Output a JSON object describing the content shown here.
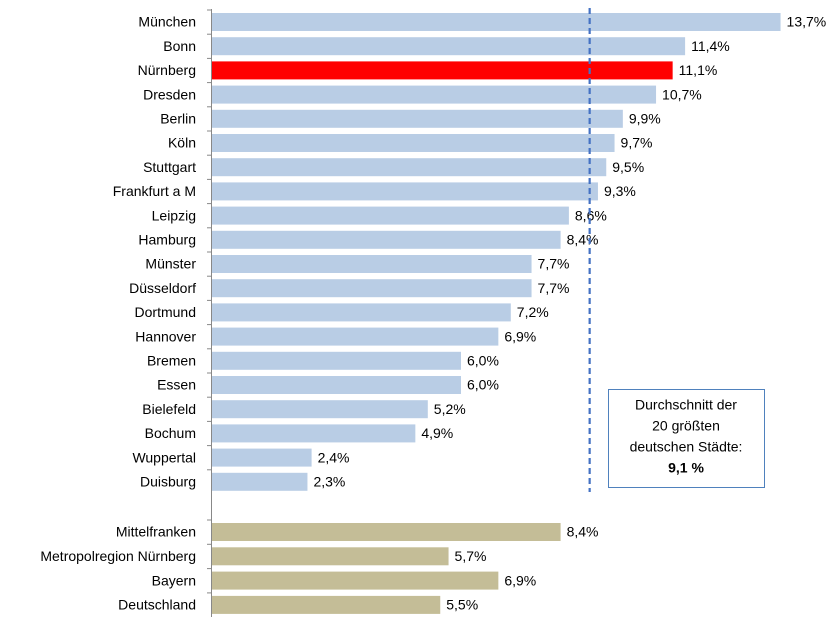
{
  "chart_data": {
    "type": "bar",
    "orientation": "horizontal",
    "categories": [
      "München",
      "Bonn",
      "Nürnberg",
      "Dresden",
      "Berlin",
      "Köln",
      "Stuttgart",
      "Frankfurt a M",
      "Leipzig",
      "Hamburg",
      "Münster",
      "Düsseldorf",
      "Dortmund",
      "Hannover",
      "Bremen",
      "Essen",
      "Bielefeld",
      "Bochum",
      "Wuppertal",
      "Duisburg",
      "Mittelfranken",
      "Metropolregion Nürnberg",
      "Bayern",
      "Deutschland"
    ],
    "values": [
      13.7,
      11.4,
      11.1,
      10.7,
      9.9,
      9.7,
      9.5,
      9.3,
      8.6,
      8.4,
      7.7,
      7.7,
      7.2,
      6.9,
      6.0,
      6.0,
      5.2,
      4.9,
      2.4,
      2.3,
      8.4,
      5.7,
      6.9,
      5.5
    ],
    "value_labels": [
      "13,7%",
      "11,4%",
      "11,1%",
      "10,7%",
      "9,9%",
      "9,7%",
      "9,5%",
      "9,3%",
      "8,6%",
      "8,4%",
      "7,7%",
      "7,7%",
      "7,2%",
      "6,9%",
      "6,0%",
      "6,0%",
      "5,2%",
      "4,9%",
      "2,4%",
      "2,3%",
      "8,4%",
      "5,7%",
      "6,9%",
      "5,5%"
    ],
    "colors": [
      "#b9cde5",
      "#b9cde5",
      "#ff0000",
      "#b9cde5",
      "#b9cde5",
      "#b9cde5",
      "#b9cde5",
      "#b9cde5",
      "#b9cde5",
      "#b9cde5",
      "#b9cde5",
      "#b9cde5",
      "#b9cde5",
      "#b9cde5",
      "#b9cde5",
      "#b9cde5",
      "#b9cde5",
      "#b9cde5",
      "#b9cde5",
      "#b9cde5",
      "#c4bd97",
      "#c4bd97",
      "#c4bd97",
      "#c4bd97"
    ],
    "xlim": [
      0,
      14
    ],
    "reference": {
      "value": 9.1,
      "label": "9,1 %",
      "text": [
        "Durchschnitt der",
        "20 größten",
        "deutschen Städte:"
      ],
      "color": "#4472c4"
    }
  }
}
